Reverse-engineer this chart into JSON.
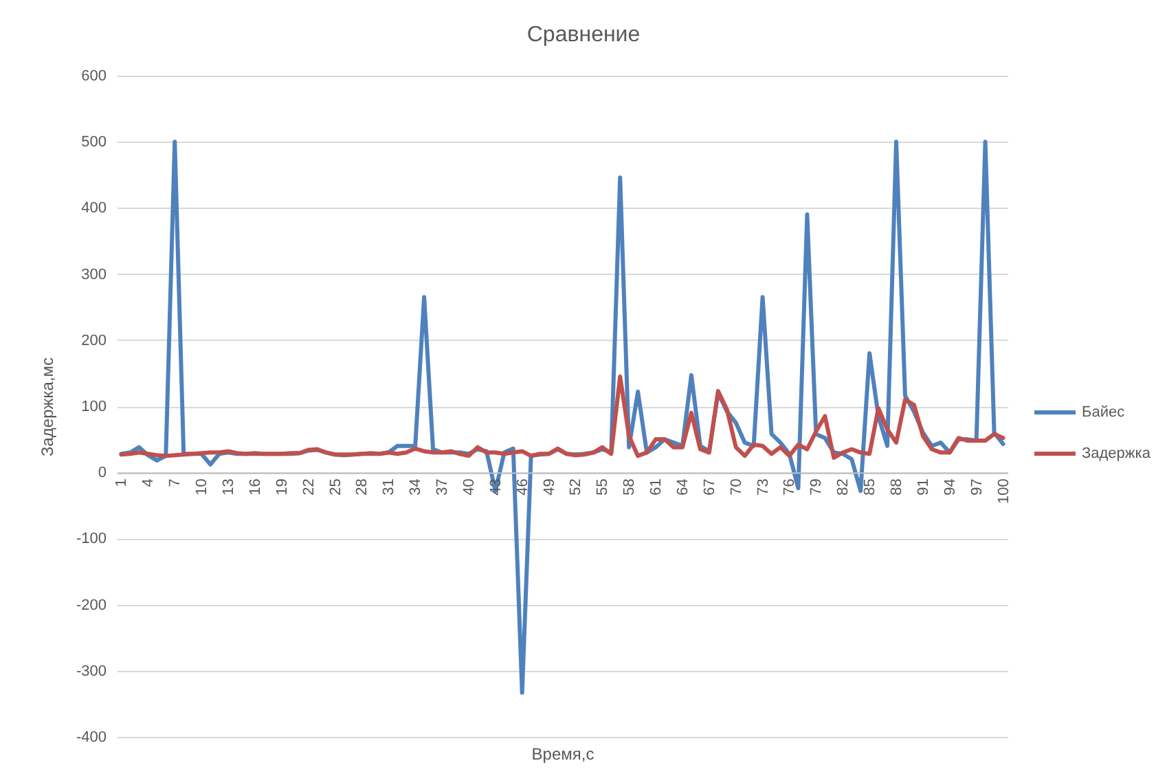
{
  "chart_data": {
    "type": "line",
    "title": "Сравнение",
    "xlabel": "Время,с",
    "ylabel": "Задержка,мс",
    "categories": [
      "1",
      null,
      null,
      "4",
      null,
      null,
      "7",
      null,
      null,
      "10",
      null,
      null,
      "13",
      null,
      null,
      "16",
      null,
      null,
      "19",
      null,
      null,
      "22",
      null,
      null,
      "25",
      null,
      null,
      "28",
      null,
      null,
      "31",
      null,
      null,
      "34",
      null,
      null,
      "37",
      null,
      null,
      "40",
      null,
      null,
      "43",
      null,
      null,
      "46",
      null,
      null,
      "49",
      null,
      null,
      "52",
      null,
      null,
      "55",
      null,
      null,
      "58",
      null,
      null,
      "61",
      null,
      null,
      "64",
      null,
      null,
      "67",
      null,
      null,
      "70",
      null,
      null,
      "73",
      null,
      null,
      "76",
      null,
      null,
      "79",
      null,
      null,
      "82",
      null,
      null,
      "85",
      null,
      null,
      "88",
      null,
      null,
      "91",
      null,
      null,
      "94",
      null,
      null,
      "97",
      null,
      null,
      "100"
    ],
    "series": [
      {
        "name": "Байес",
        "color": "#4f81bd",
        "values": [
          28,
          30,
          38,
          26,
          18,
          25,
          500,
          28,
          28,
          28,
          12,
          28,
          30,
          28,
          28,
          28,
          28,
          28,
          28,
          28,
          29,
          33,
          34,
          30,
          27,
          26,
          27,
          28,
          28,
          28,
          30,
          40,
          40,
          40,
          265,
          35,
          30,
          30,
          30,
          28,
          35,
          32,
          -28,
          30,
          36,
          -333,
          25,
          27,
          28,
          35,
          28,
          27,
          28,
          30,
          35,
          30,
          446,
          38,
          122,
          30,
          38,
          50,
          45,
          40,
          147,
          40,
          32,
          120,
          92,
          75,
          45,
          40,
          265,
          58,
          45,
          28,
          -24,
          390,
          58,
          52,
          30,
          28,
          20,
          -28,
          180,
          85,
          40,
          500,
          116,
          92,
          60,
          40,
          45,
          30,
          50,
          50,
          48,
          500,
          60,
          43
        ]
      },
      {
        "name": "Задержка",
        "color": "#c0504d",
        "values": [
          27,
          28,
          30,
          28,
          26,
          25,
          26,
          27,
          28,
          29,
          30,
          30,
          32,
          29,
          28,
          29,
          28,
          28,
          28,
          29,
          29,
          34,
          35,
          30,
          27,
          27,
          27,
          28,
          29,
          28,
          30,
          28,
          30,
          36,
          32,
          30,
          30,
          32,
          28,
          25,
          38,
          30,
          30,
          28,
          30,
          32,
          25,
          28,
          28,
          36,
          28,
          26,
          27,
          30,
          38,
          28,
          145,
          55,
          25,
          30,
          50,
          50,
          38,
          38,
          90,
          35,
          30,
          123,
          95,
          38,
          25,
          42,
          40,
          28,
          38,
          25,
          42,
          35,
          62,
          85,
          22,
          30,
          35,
          30,
          28,
          97,
          65,
          45,
          110,
          102,
          55,
          35,
          30,
          30,
          52,
          48,
          48,
          48,
          58,
          52
        ]
      }
    ],
    "ylim": [
      -400,
      600
    ],
    "yticks": [
      -400,
      -300,
      -200,
      -100,
      0,
      100,
      200,
      300,
      400,
      500,
      600
    ],
    "grid": "y",
    "legend": "right"
  }
}
